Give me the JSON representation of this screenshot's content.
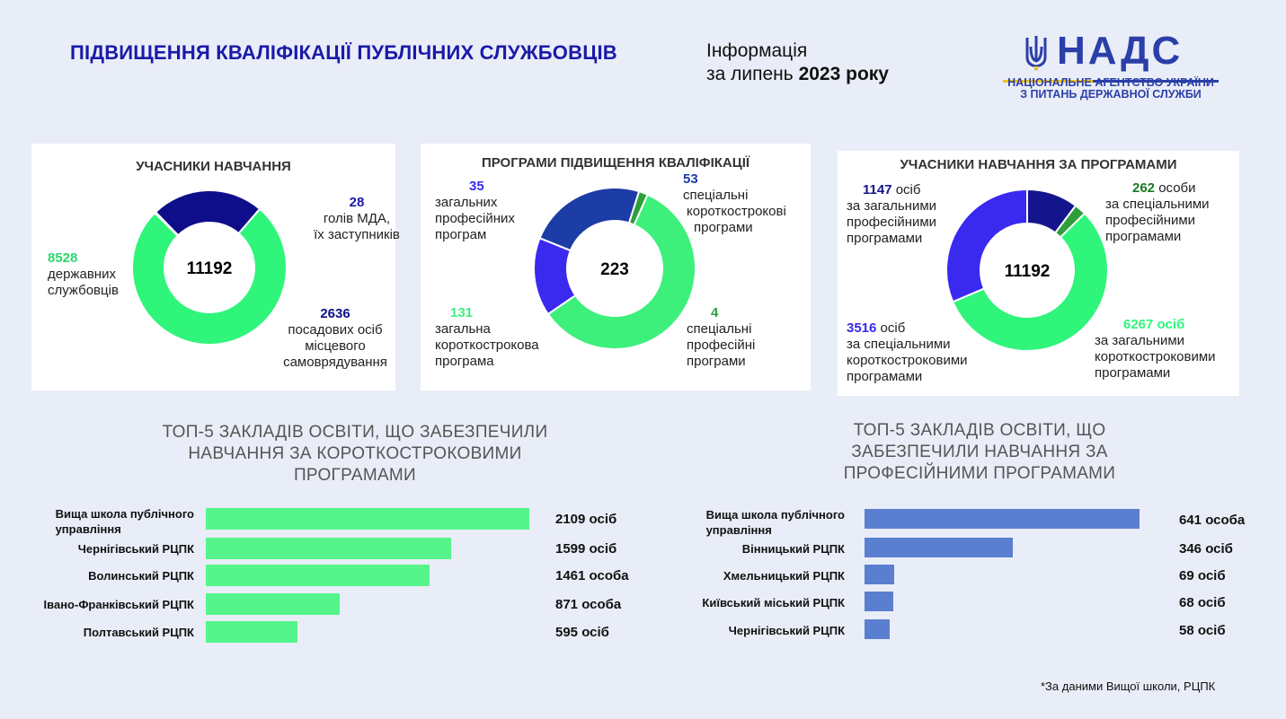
{
  "header": {
    "title": "ПІДВИЩЕННЯ КВАЛІФІКАЦІЇ ПУБЛІЧНИХ СЛУЖБОВЦІВ",
    "info_line1": "Інформація",
    "info_line2_prefix": "за липень ",
    "info_line2_year": "2023 року"
  },
  "logo": {
    "name": "НАДС",
    "sub_line1": "НАЦІОНАЛЬНЕ АГЕНТСТВО УКРАЇНИ",
    "sub_line2": "З ПИТАНЬ ДЕРЖАВНОЇ СЛУЖБИ",
    "icon": "trident-icon",
    "color": "#2b3fa8"
  },
  "chart_data": [
    {
      "type": "pie",
      "title": "УЧАСНИКИ НАВЧАННЯ",
      "center_label": "11192",
      "slices": [
        {
          "value": 28,
          "value_label": "28",
          "label_lines": [
            "голів МДА,",
            "їх заступників"
          ],
          "color": "#1c1c8c"
        },
        {
          "value": 2636,
          "value_label": "2636",
          "label_lines": [
            "посадових осіб",
            "місцевого",
            "самоврядування"
          ],
          "color": "#0e0e8a"
        },
        {
          "value": 8528,
          "value_label": "8528",
          "label_lines": [
            "державних",
            "службовців"
          ],
          "color": "#2ff57a"
        }
      ]
    },
    {
      "type": "pie",
      "title": "ПРОГРАМИ ПІДВИЩЕННЯ КВАЛІФІКАЦІЇ",
      "center_label": "223",
      "slices": [
        {
          "value": 53,
          "value_label": "53",
          "label_lines": [
            "спеціальні",
            "короткострокові",
            "програми"
          ],
          "color": "#1c3ca6"
        },
        {
          "value": 4,
          "value_label": "4",
          "label_lines": [
            "спеціальні",
            "професійні",
            "програми"
          ],
          "color": "#2e9e3a"
        },
        {
          "value": 131,
          "value_label": "131",
          "label_lines": [
            "загальна",
            "короткострокова",
            "програма"
          ],
          "color": "#3df07c"
        },
        {
          "value": 35,
          "value_label": "35",
          "label_lines": [
            "загальних",
            "професійних",
            "програм"
          ],
          "color": "#3a2af0"
        }
      ]
    },
    {
      "type": "pie",
      "title": "УЧАСНИКИ НАВЧАННЯ ЗА ПРОГРАМАМИ",
      "center_label": "11192",
      "slices": [
        {
          "value": 1147,
          "value_label": "1147",
          "unit": "осіб",
          "label_lines": [
            "за загальними",
            "професійними",
            "програмами"
          ],
          "color": "#14148c"
        },
        {
          "value": 262,
          "value_label": "262",
          "unit": "особи",
          "label_lines": [
            "за спеціальними",
            "професійними",
            "програмами"
          ],
          "color": "#2e9e3a"
        },
        {
          "value": 6267,
          "value_label": "6267 осіб",
          "label_lines": [
            "за загальними",
            "короткостроковими",
            "програмами"
          ],
          "color": "#2ff57a"
        },
        {
          "value": 3516,
          "value_label": "3516",
          "unit": "осіб",
          "label_lines": [
            "за спеціальними",
            "короткостроковими",
            "програмами"
          ],
          "color": "#3a2af0"
        }
      ]
    },
    {
      "type": "bar",
      "orientation": "horizontal",
      "title_lines": [
        "ТОП-5 ЗАКЛАДІВ ОСВІТИ, ЩО ЗАБЕЗПЕЧИЛИ",
        "НАВЧАННЯ ЗА КОРОТКОСТРОКОВИМИ",
        "ПРОГРАМАМИ"
      ],
      "categories": [
        "Вища школа публічного управління",
        "Чернігівський РЦПК",
        "Волинський РЦПК",
        "Івано-Франківський РЦПК",
        "Полтавський РЦПК"
      ],
      "category_lines": [
        [
          "Вища школа публічного",
          "управління"
        ],
        [
          "Чернігівський РЦПК"
        ],
        [
          "Волинський РЦПК"
        ],
        [
          "Івано-Франківський РЦПК"
        ],
        [
          "Полтавський РЦПК"
        ]
      ],
      "values": [
        2109,
        1599,
        1461,
        871,
        595
      ],
      "value_labels": [
        "2109 осіб",
        "1599 осіб",
        "1461 особа",
        "871 особа",
        "595 осіб"
      ],
      "color": "#55f58c",
      "xlim": [
        0,
        2109
      ]
    },
    {
      "type": "bar",
      "orientation": "horizontal",
      "title_lines": [
        "ТОП-5 ЗАКЛАДІВ ОСВІТИ, ЩО",
        "ЗАБЕЗПЕЧИЛИ НАВЧАННЯ ЗА",
        "ПРОФЕСІЙНИМИ ПРОГРАМАМИ"
      ],
      "categories": [
        "Вища школа публічного управління",
        "Вінницький РЦПК",
        "Хмельницький РЦПК",
        "Київський міський РЦПК",
        "Чернігівський РЦПК"
      ],
      "category_lines": [
        [
          "Вища школа публічного",
          "управління"
        ],
        [
          "Вінницький РЦПК"
        ],
        [
          "Хмельницький РЦПК"
        ],
        [
          "Київський міський РЦПК"
        ],
        [
          "Чернігівський РЦПК"
        ]
      ],
      "values": [
        641,
        346,
        69,
        68,
        58
      ],
      "value_labels": [
        "641 особа",
        "346 осіб",
        "69 осіб",
        "68 осіб",
        "58 осіб"
      ],
      "color": "#5b7fd0",
      "xlim": [
        0,
        641
      ]
    }
  ],
  "footer": {
    "note": "*За даними Вищої школи, РЦПК"
  }
}
